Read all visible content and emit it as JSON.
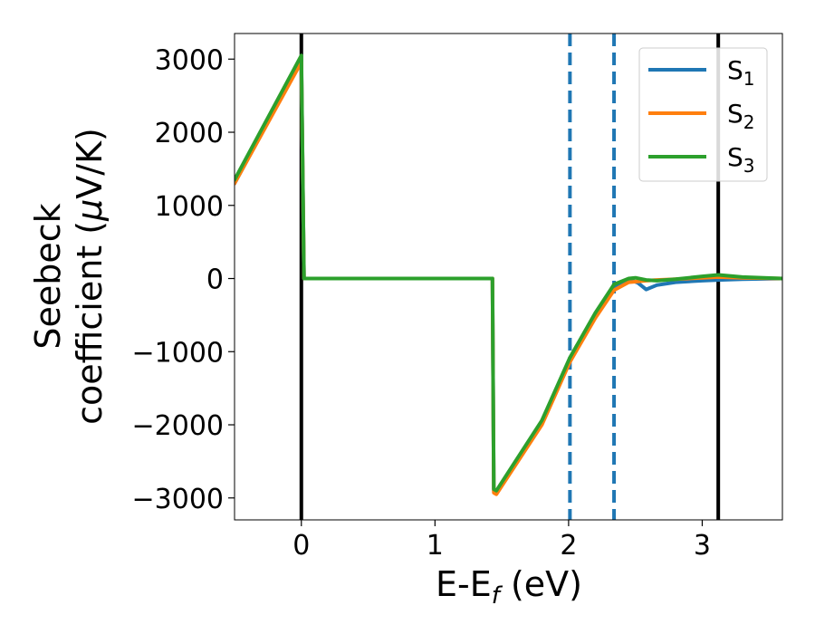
{
  "chart_data": {
    "type": "line",
    "xlabel": {
      "main": "E-E",
      "sub": "f",
      "unit": " (eV)"
    },
    "ylabel": {
      "line1": "Seebeck",
      "line2": "coefficient  (",
      "mu": "μ",
      "unit": "V/K)"
    },
    "xlim": [
      -0.5,
      3.6
    ],
    "ylim": [
      -3300,
      3350
    ],
    "xticks": [
      0,
      1,
      2,
      3
    ],
    "xtick_labels": [
      "0",
      "1",
      "2",
      "3"
    ],
    "yticks": [
      -3000,
      -2000,
      -1000,
      0,
      1000,
      2000,
      3000
    ],
    "ytick_labels": [
      "−3000",
      "−2000",
      "−1000",
      "0",
      "1000",
      "2000",
      "3000"
    ],
    "vlines": [
      {
        "x": 0.0,
        "style": "solid",
        "color": "#000000"
      },
      {
        "x": 3.12,
        "style": "solid",
        "color": "#000000"
      },
      {
        "x": 2.01,
        "style": "dashed",
        "color": "#1f77b4"
      },
      {
        "x": 2.34,
        "style": "dashed",
        "color": "#1f77b4"
      }
    ],
    "legend_position": "top-right",
    "series": [
      {
        "name": "S",
        "sub": "1",
        "color": "#1f77b4",
        "x": [
          -0.5,
          0.0,
          0.02,
          0.6,
          1.43,
          1.44,
          1.46,
          1.8,
          2.01,
          2.2,
          2.34,
          2.45,
          2.52,
          2.58,
          2.66,
          2.8,
          3.0,
          3.12,
          3.3,
          3.6
        ],
        "y": [
          1300,
          2980,
          0,
          0,
          0,
          -2900,
          -2920,
          -1960,
          -1100,
          -500,
          -120,
          -10,
          -60,
          -150,
          -90,
          -50,
          -30,
          -20,
          -10,
          0
        ]
      },
      {
        "name": "S",
        "sub": "2",
        "color": "#ff7f0e",
        "x": [
          -0.5,
          0.0,
          0.02,
          0.6,
          1.43,
          1.44,
          1.46,
          1.8,
          2.01,
          2.2,
          2.34,
          2.45,
          2.52,
          2.58,
          2.66,
          2.8,
          3.0,
          3.12,
          3.3,
          3.6
        ],
        "y": [
          1300,
          2960,
          0,
          0,
          0,
          -2930,
          -2950,
          -2000,
          -1140,
          -540,
          -160,
          -50,
          -40,
          -30,
          -20,
          -10,
          10,
          20,
          10,
          0
        ]
      },
      {
        "name": "S",
        "sub": "3",
        "color": "#2ca02c",
        "x": [
          -0.5,
          0.0,
          0.02,
          0.6,
          1.43,
          1.44,
          1.46,
          1.8,
          2.01,
          2.2,
          2.34,
          2.45,
          2.5,
          2.58,
          2.66,
          2.8,
          3.0,
          3.12,
          3.3,
          3.6
        ],
        "y": [
          1350,
          3050,
          0,
          0,
          0,
          -2880,
          -2900,
          -1940,
          -1080,
          -470,
          -80,
          0,
          10,
          -20,
          -30,
          -10,
          30,
          50,
          20,
          0
        ]
      }
    ]
  }
}
